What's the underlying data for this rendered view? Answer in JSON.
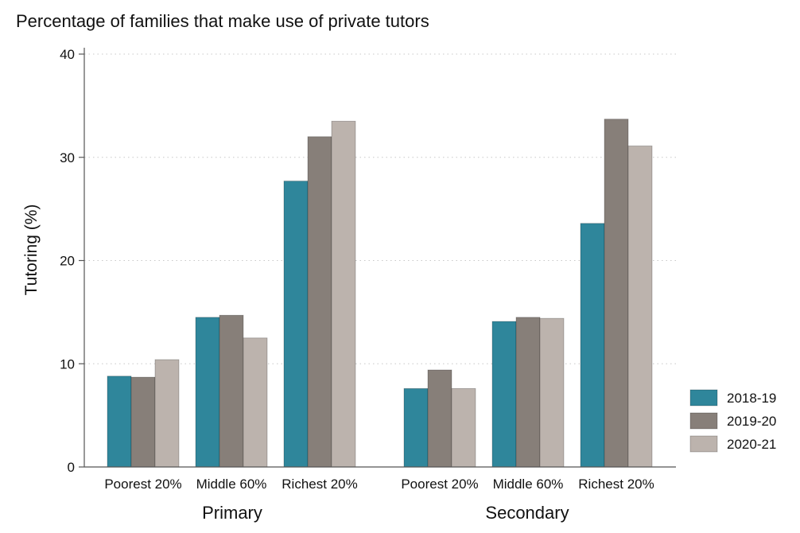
{
  "chart_data": {
    "type": "bar",
    "title": "Percentage of families that make use of private tutors",
    "xlabel": "",
    "ylabel": "Tutoring (%)",
    "ylim": [
      0,
      40
    ],
    "yticks": [
      "0",
      "10",
      "20",
      "30",
      "40"
    ],
    "grid": true,
    "legend_position": "right",
    "groups": [
      {
        "label": "Primary",
        "categories": [
          "Poorest 20%",
          "Middle 60%",
          "Richest 20%"
        ]
      },
      {
        "label": "Secondary",
        "categories": [
          "Poorest 20%",
          "Middle 60%",
          "Richest 20%"
        ]
      }
    ],
    "series": [
      {
        "name": "2018-19",
        "color": "#2f869b",
        "values": [
          [
            8.8,
            14.5,
            27.7
          ],
          [
            7.6,
            14.1,
            23.6
          ]
        ]
      },
      {
        "name": "2019-20",
        "color": "#877f79",
        "values": [
          [
            8.7,
            14.7,
            32.0
          ],
          [
            9.4,
            14.5,
            33.7
          ]
        ]
      },
      {
        "name": "2020-21",
        "color": "#bcb3ad",
        "values": [
          [
            10.4,
            12.5,
            33.5
          ],
          [
            7.6,
            14.4,
            31.1
          ]
        ]
      }
    ]
  }
}
